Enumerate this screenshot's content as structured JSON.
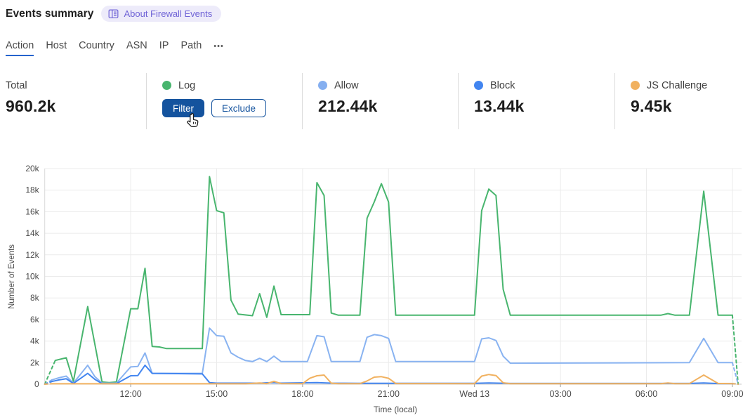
{
  "header": {
    "title": "Events summary",
    "about_label": "About Firewall Events"
  },
  "tabs": {
    "items": [
      "Action",
      "Host",
      "Country",
      "ASN",
      "IP",
      "Path"
    ],
    "active": "Action",
    "overflow_label": "•••"
  },
  "stats": {
    "total": {
      "label": "Total",
      "value": "960.2k"
    },
    "cells": [
      {
        "label": "Log",
        "color": "#48b56e",
        "hovered": true,
        "buttons": {
          "filter": "Filter",
          "exclude": "Exclude"
        }
      },
      {
        "label": "Allow",
        "color": "#85aff0",
        "value": "212.44k"
      },
      {
        "label": "Block",
        "color": "#4285f0",
        "value": "13.44k"
      },
      {
        "label": "JS Challenge",
        "color": "#f1b15f",
        "value": "9.45k"
      }
    ]
  },
  "colors": {
    "tab_underline": "#2563cd",
    "button_blue": "#14539e",
    "badge_bg": "#edebfa",
    "badge_text": "#6f63d6",
    "gridline": "#ebebeb",
    "axis": "#c8c8c8",
    "tick_text": "#4a4a4a"
  },
  "chart_data": {
    "type": "line",
    "title": "",
    "xlabel": "Time (local)",
    "ylabel": "Number of Events",
    "ylim_events": [
      0,
      20000
    ],
    "y_tick_step": 2000,
    "y_tick_labels": [
      "0",
      "2k",
      "4k",
      "6k",
      "8k",
      "10k",
      "12k",
      "14k",
      "16k",
      "18k",
      "20k"
    ],
    "x_unit": "minutes since 09:00 local, first day",
    "x_range": [
      0,
      1452
    ],
    "x_ticks": [
      {
        "t": 180,
        "label": "12:00"
      },
      {
        "t": 360,
        "label": "15:00"
      },
      {
        "t": 540,
        "label": "18:00"
      },
      {
        "t": 720,
        "label": "21:00"
      },
      {
        "t": 900,
        "label": "Wed 13"
      },
      {
        "t": 1080,
        "label": "03:00"
      },
      {
        "t": 1260,
        "label": "06:00"
      },
      {
        "t": 1440,
        "label": "09:00"
      }
    ],
    "grid": true,
    "legend_position": "in stats row above chart",
    "dashed_first_and_last_segment": true,
    "series": [
      {
        "name": "Log",
        "color": "#48b56e",
        "points": [
          [
            0,
            0
          ],
          [
            22,
            2200
          ],
          [
            45,
            2450
          ],
          [
            60,
            260
          ],
          [
            90,
            7200
          ],
          [
            120,
            200
          ],
          [
            135,
            150
          ],
          [
            150,
            200
          ],
          [
            180,
            7000
          ],
          [
            195,
            7000
          ],
          [
            210,
            10750
          ],
          [
            225,
            3500
          ],
          [
            240,
            3450
          ],
          [
            255,
            3300
          ],
          [
            330,
            3300
          ],
          [
            345,
            19250
          ],
          [
            360,
            16100
          ],
          [
            375,
            15900
          ],
          [
            390,
            7800
          ],
          [
            405,
            6500
          ],
          [
            435,
            6350
          ],
          [
            450,
            8400
          ],
          [
            465,
            6200
          ],
          [
            480,
            9100
          ],
          [
            495,
            6450
          ],
          [
            555,
            6450
          ],
          [
            570,
            18700
          ],
          [
            585,
            17500
          ],
          [
            600,
            6600
          ],
          [
            615,
            6400
          ],
          [
            660,
            6400
          ],
          [
            675,
            15400
          ],
          [
            690,
            16900
          ],
          [
            705,
            18600
          ],
          [
            720,
            16900
          ],
          [
            735,
            6400
          ],
          [
            900,
            6400
          ],
          [
            915,
            16100
          ],
          [
            930,
            18100
          ],
          [
            945,
            17500
          ],
          [
            960,
            8800
          ],
          [
            975,
            6400
          ],
          [
            1290,
            6400
          ],
          [
            1305,
            6550
          ],
          [
            1320,
            6400
          ],
          [
            1350,
            6400
          ],
          [
            1380,
            17900
          ],
          [
            1410,
            6400
          ],
          [
            1440,
            6400
          ],
          [
            1452,
            0
          ]
        ]
      },
      {
        "name": "Allow",
        "color": "#89b3f1",
        "points": [
          [
            0,
            0
          ],
          [
            15,
            400
          ],
          [
            30,
            600
          ],
          [
            45,
            750
          ],
          [
            60,
            100
          ],
          [
            90,
            1750
          ],
          [
            105,
            700
          ],
          [
            120,
            100
          ],
          [
            150,
            100
          ],
          [
            180,
            1600
          ],
          [
            195,
            1650
          ],
          [
            210,
            2900
          ],
          [
            225,
            1000
          ],
          [
            330,
            1000
          ],
          [
            345,
            5200
          ],
          [
            360,
            4500
          ],
          [
            375,
            4450
          ],
          [
            390,
            2900
          ],
          [
            405,
            2500
          ],
          [
            420,
            2200
          ],
          [
            435,
            2100
          ],
          [
            450,
            2400
          ],
          [
            465,
            2100
          ],
          [
            480,
            2600
          ],
          [
            495,
            2100
          ],
          [
            550,
            2100
          ],
          [
            570,
            4500
          ],
          [
            585,
            4400
          ],
          [
            600,
            2100
          ],
          [
            660,
            2100
          ],
          [
            675,
            4350
          ],
          [
            690,
            4600
          ],
          [
            705,
            4500
          ],
          [
            720,
            4250
          ],
          [
            735,
            2100
          ],
          [
            900,
            2100
          ],
          [
            915,
            4200
          ],
          [
            930,
            4300
          ],
          [
            945,
            4050
          ],
          [
            960,
            2600
          ],
          [
            975,
            1950
          ],
          [
            1350,
            2000
          ],
          [
            1380,
            4250
          ],
          [
            1410,
            2000
          ],
          [
            1440,
            2000
          ],
          [
            1452,
            0
          ]
        ]
      },
      {
        "name": "Block",
        "color": "#4285f0",
        "points": [
          [
            0,
            0
          ],
          [
            15,
            250
          ],
          [
            30,
            400
          ],
          [
            45,
            500
          ],
          [
            60,
            70
          ],
          [
            90,
            1000
          ],
          [
            105,
            450
          ],
          [
            120,
            50
          ],
          [
            150,
            50
          ],
          [
            180,
            780
          ],
          [
            195,
            800
          ],
          [
            210,
            1750
          ],
          [
            225,
            1000
          ],
          [
            330,
            950
          ],
          [
            345,
            150
          ],
          [
            360,
            100
          ],
          [
            450,
            100
          ],
          [
            480,
            150
          ],
          [
            495,
            100
          ],
          [
            570,
            150
          ],
          [
            600,
            100
          ],
          [
            660,
            80
          ],
          [
            900,
            80
          ],
          [
            930,
            120
          ],
          [
            975,
            70
          ],
          [
            1350,
            70
          ],
          [
            1380,
            120
          ],
          [
            1410,
            60
          ],
          [
            1440,
            60
          ],
          [
            1452,
            0
          ]
        ]
      },
      {
        "name": "JS Challenge",
        "color": "#f1b15f",
        "points": [
          [
            0,
            0
          ],
          [
            15,
            40
          ],
          [
            420,
            40
          ],
          [
            450,
            120
          ],
          [
            465,
            50
          ],
          [
            480,
            260
          ],
          [
            495,
            60
          ],
          [
            540,
            50
          ],
          [
            555,
            550
          ],
          [
            570,
            780
          ],
          [
            585,
            850
          ],
          [
            600,
            100
          ],
          [
            615,
            50
          ],
          [
            660,
            50
          ],
          [
            675,
            300
          ],
          [
            690,
            650
          ],
          [
            705,
            700
          ],
          [
            720,
            550
          ],
          [
            735,
            60
          ],
          [
            900,
            50
          ],
          [
            915,
            750
          ],
          [
            930,
            900
          ],
          [
            945,
            800
          ],
          [
            960,
            130
          ],
          [
            975,
            50
          ],
          [
            1290,
            50
          ],
          [
            1305,
            120
          ],
          [
            1320,
            50
          ],
          [
            1350,
            50
          ],
          [
            1380,
            850
          ],
          [
            1410,
            70
          ],
          [
            1440,
            50
          ],
          [
            1452,
            0
          ]
        ]
      }
    ]
  }
}
